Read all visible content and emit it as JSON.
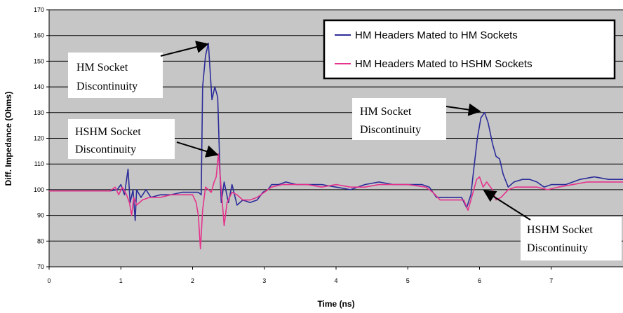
{
  "chart_data": {
    "type": "line",
    "title": "",
    "xlabel": "Time (ns)",
    "ylabel": "Diff. Impedance (Ohms)",
    "xlim": [
      0,
      8
    ],
    "ylim": [
      70,
      170
    ],
    "x_ticks": [
      0,
      1,
      2,
      3,
      4,
      5,
      6,
      7
    ],
    "y_ticks": [
      70,
      80,
      90,
      100,
      110,
      120,
      130,
      140,
      150,
      160,
      170
    ],
    "grid": true,
    "legend_position": "top-right",
    "series": [
      {
        "name": "HM Headers Mated to HM Sockets",
        "color": "#2c2c9a",
        "points": [
          [
            0.0,
            99.5
          ],
          [
            0.85,
            99.5
          ],
          [
            0.95,
            100
          ],
          [
            1.0,
            102
          ],
          [
            1.05,
            98
          ],
          [
            1.1,
            108
          ],
          [
            1.13,
            95
          ],
          [
            1.17,
            100
          ],
          [
            1.2,
            88
          ],
          [
            1.22,
            100
          ],
          [
            1.28,
            97
          ],
          [
            1.35,
            100
          ],
          [
            1.42,
            97
          ],
          [
            1.55,
            98
          ],
          [
            1.7,
            98
          ],
          [
            1.85,
            99
          ],
          [
            2.0,
            99
          ],
          [
            2.08,
            99
          ],
          [
            2.12,
            98
          ],
          [
            2.14,
            140
          ],
          [
            2.18,
            152
          ],
          [
            2.22,
            157
          ],
          [
            2.27,
            135
          ],
          [
            2.31,
            140
          ],
          [
            2.35,
            136
          ],
          [
            2.38,
            108
          ],
          [
            2.4,
            95
          ],
          [
            2.44,
            103
          ],
          [
            2.5,
            95
          ],
          [
            2.55,
            102
          ],
          [
            2.62,
            94
          ],
          [
            2.7,
            96
          ],
          [
            2.8,
            95
          ],
          [
            2.9,
            96
          ],
          [
            2.98,
            99
          ],
          [
            3.05,
            100
          ],
          [
            3.1,
            102
          ],
          [
            3.2,
            102
          ],
          [
            3.3,
            103
          ],
          [
            3.45,
            102
          ],
          [
            3.6,
            102
          ],
          [
            3.8,
            102
          ],
          [
            4.0,
            101
          ],
          [
            4.2,
            100
          ],
          [
            4.4,
            102
          ],
          [
            4.6,
            103
          ],
          [
            4.8,
            102
          ],
          [
            5.0,
            102
          ],
          [
            5.2,
            102
          ],
          [
            5.3,
            101
          ],
          [
            5.4,
            97
          ],
          [
            5.6,
            97
          ],
          [
            5.75,
            97
          ],
          [
            5.82,
            93
          ],
          [
            5.88,
            98
          ],
          [
            5.92,
            108
          ],
          [
            5.97,
            120
          ],
          [
            6.02,
            128
          ],
          [
            6.07,
            130
          ],
          [
            6.12,
            126
          ],
          [
            6.18,
            118
          ],
          [
            6.23,
            113
          ],
          [
            6.28,
            112
          ],
          [
            6.33,
            106
          ],
          [
            6.4,
            101
          ],
          [
            6.48,
            103
          ],
          [
            6.6,
            104
          ],
          [
            6.7,
            104
          ],
          [
            6.8,
            103
          ],
          [
            6.9,
            101
          ],
          [
            7.0,
            102
          ],
          [
            7.2,
            102
          ],
          [
            7.4,
            104
          ],
          [
            7.6,
            105
          ],
          [
            7.8,
            104
          ],
          [
            8.0,
            104
          ]
        ]
      },
      {
        "name": "HM Headers Mated to HSHM Sockets",
        "color": "#e6338c",
        "points": [
          [
            0.0,
            99.5
          ],
          [
            0.85,
            99.5
          ],
          [
            0.92,
            101
          ],
          [
            0.97,
            98
          ],
          [
            1.02,
            101
          ],
          [
            1.08,
            98
          ],
          [
            1.12,
            95
          ],
          [
            1.15,
            90
          ],
          [
            1.18,
            97
          ],
          [
            1.22,
            94
          ],
          [
            1.3,
            96
          ],
          [
            1.4,
            97
          ],
          [
            1.55,
            97
          ],
          [
            1.7,
            98
          ],
          [
            1.85,
            98
          ],
          [
            2.0,
            98
          ],
          [
            2.05,
            95
          ],
          [
            2.08,
            90
          ],
          [
            2.11,
            77
          ],
          [
            2.14,
            92
          ],
          [
            2.18,
            101
          ],
          [
            2.22,
            100
          ],
          [
            2.26,
            99
          ],
          [
            2.3,
            103
          ],
          [
            2.33,
            105
          ],
          [
            2.36,
            114
          ],
          [
            2.4,
            100
          ],
          [
            2.44,
            86
          ],
          [
            2.48,
            95
          ],
          [
            2.55,
            99
          ],
          [
            2.62,
            98
          ],
          [
            2.7,
            96
          ],
          [
            2.8,
            96
          ],
          [
            2.9,
            97
          ],
          [
            3.0,
            99
          ],
          [
            3.1,
            101
          ],
          [
            3.25,
            102
          ],
          [
            3.4,
            102
          ],
          [
            3.6,
            102
          ],
          [
            3.8,
            101
          ],
          [
            4.0,
            102
          ],
          [
            4.2,
            101
          ],
          [
            4.4,
            101
          ],
          [
            4.6,
            102
          ],
          [
            4.8,
            102
          ],
          [
            5.0,
            102
          ],
          [
            5.25,
            101
          ],
          [
            5.35,
            99
          ],
          [
            5.45,
            96
          ],
          [
            5.6,
            96
          ],
          [
            5.78,
            96
          ],
          [
            5.84,
            92
          ],
          [
            5.9,
            98
          ],
          [
            5.96,
            104
          ],
          [
            6.0,
            105
          ],
          [
            6.05,
            101
          ],
          [
            6.1,
            103
          ],
          [
            6.18,
            100
          ],
          [
            6.23,
            96
          ],
          [
            6.3,
            97
          ],
          [
            6.4,
            100
          ],
          [
            6.5,
            101
          ],
          [
            6.65,
            101
          ],
          [
            6.8,
            101
          ],
          [
            6.95,
            100
          ],
          [
            7.1,
            101
          ],
          [
            7.3,
            102
          ],
          [
            7.5,
            103
          ],
          [
            7.7,
            103
          ],
          [
            7.9,
            103
          ],
          [
            8.0,
            103
          ]
        ]
      }
    ],
    "annotations": [
      {
        "id": "hm-1",
        "lines": [
          "HM Socket",
          "Discontinuity"
        ],
        "target": [
          2.22,
          157
        ]
      },
      {
        "id": "hshm-1",
        "lines": [
          "HSHM Socket",
          "Discontinuity"
        ],
        "target": [
          2.36,
          114
        ]
      },
      {
        "id": "hm-2",
        "lines": [
          "HM Socket",
          "Discontinuity"
        ],
        "target": [
          6.07,
          130
        ]
      },
      {
        "id": "hshm-2",
        "lines": [
          "HSHM Socket",
          "Discontinuity"
        ],
        "target": [
          5.96,
          104
        ]
      }
    ]
  }
}
